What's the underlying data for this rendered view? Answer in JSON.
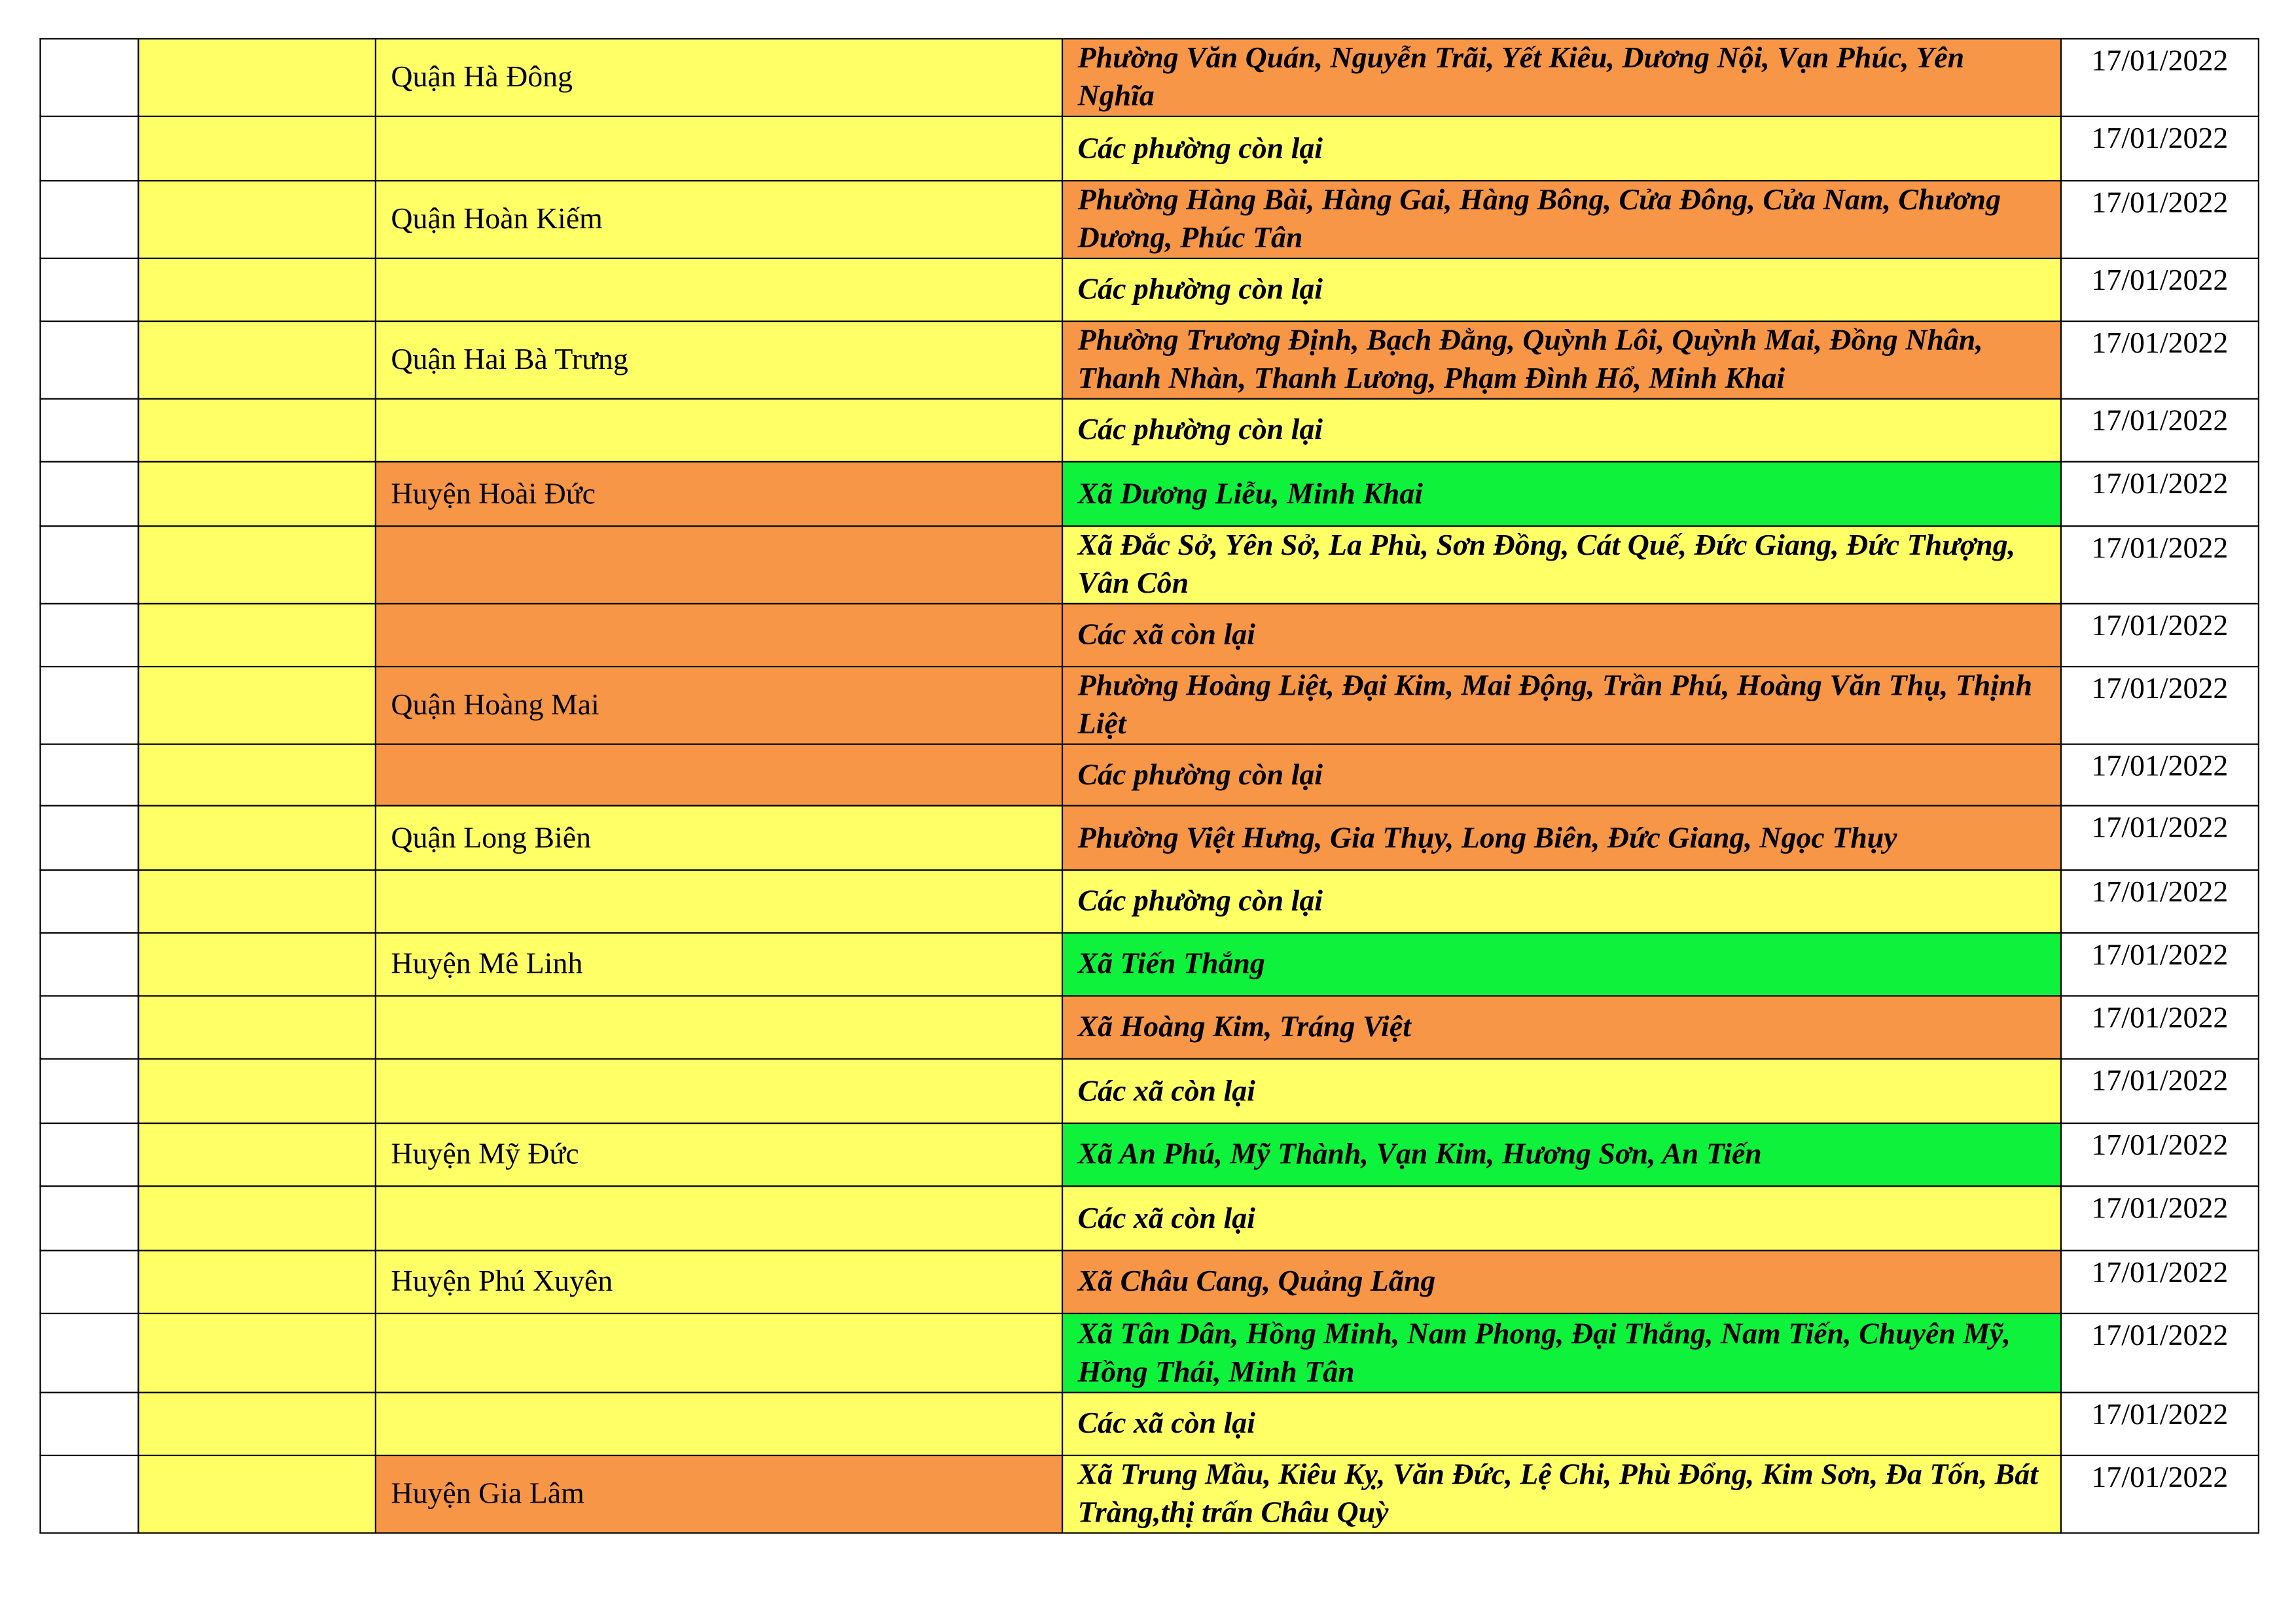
{
  "colors": {
    "yellow": "#ffff66",
    "orange": "#f79646",
    "green": "#0ff23c",
    "white": "#ffffff"
  },
  "rows": [
    {
      "district": "Quận Hà Đông",
      "district_color": "yellow",
      "wards": "Phường Văn Quán, Nguyễn Trãi, Yết Kiêu, Dương Nội, Vạn Phúc, Yên Nghĩa",
      "ward_color": "orange",
      "date": "17/01/2022"
    },
    {
      "district": "",
      "district_color": "yellow",
      "wards": "Các phường còn lại",
      "ward_color": "yellow",
      "date": "17/01/2022"
    },
    {
      "district": "Quận Hoàn Kiếm",
      "district_color": "yellow",
      "wards": "Phường Hàng Bài, Hàng Gai, Hàng Bông, Cửa Đông, Cửa Nam, Chương Dương, Phúc Tân",
      "ward_color": "orange",
      "date": "17/01/2022"
    },
    {
      "district": "",
      "district_color": "yellow",
      "wards": "Các phường còn lại",
      "ward_color": "yellow",
      "date": "17/01/2022"
    },
    {
      "district": "Quận Hai Bà Trưng",
      "district_color": "yellow",
      "wards": "Phường Trương Định, Bạch Đằng, Quỳnh Lôi, Quỳnh Mai, Đồng Nhân, Thanh Nhàn, Thanh Lương, Phạm Đình Hổ, Minh Khai",
      "ward_color": "orange",
      "date": "17/01/2022"
    },
    {
      "district": "",
      "district_color": "yellow",
      "wards": "Các phường còn lại",
      "ward_color": "yellow",
      "date": "17/01/2022"
    },
    {
      "district": "Huyện Hoài Đức",
      "district_color": "orange",
      "wards": "Xã Dương Liễu, Minh Khai",
      "ward_color": "green",
      "date": "17/01/2022"
    },
    {
      "district": "",
      "district_color": "orange",
      "wards": "Xã Đắc Sở, Yên Sở, La Phù, Sơn Đồng, Cát Quế, Đức Giang, Đức Thượng, Vân Côn",
      "ward_color": "yellow",
      "date": "17/01/2022"
    },
    {
      "district": "",
      "district_color": "orange",
      "wards": "Các xã còn lại",
      "ward_color": "orange",
      "date": "17/01/2022"
    },
    {
      "district": "Quận Hoàng Mai",
      "district_color": "orange",
      "wards": "Phường Hoàng Liệt, Đại Kim, Mai Động, Trần Phú, Hoàng Văn Thụ, Thịnh Liệt",
      "ward_color": "orange",
      "date": "17/01/2022"
    },
    {
      "district": "",
      "district_color": "orange",
      "wards": "Các phường còn lại",
      "ward_color": "orange",
      "date": "17/01/2022"
    },
    {
      "district": "Quận Long Biên",
      "district_color": "yellow",
      "wards": "Phường Việt Hưng, Gia Thụy, Long Biên, Đức Giang, Ngọc Thụy",
      "ward_color": "orange",
      "date": "17/01/2022"
    },
    {
      "district": "",
      "district_color": "yellow",
      "wards": "Các phường còn lại",
      "ward_color": "yellow",
      "date": "17/01/2022"
    },
    {
      "district": "Huyện Mê Linh",
      "district_color": "yellow",
      "wards": "Xã Tiến Thắng",
      "ward_color": "green",
      "date": "17/01/2022"
    },
    {
      "district": "",
      "district_color": "yellow",
      "wards": "Xã Hoàng Kim, Tráng Việt",
      "ward_color": "orange",
      "date": "17/01/2022"
    },
    {
      "district": "",
      "district_color": "yellow",
      "wards": "Các xã còn lại",
      "ward_color": "yellow",
      "date": "17/01/2022"
    },
    {
      "district": "Huyện Mỹ Đức",
      "district_color": "yellow",
      "wards": "Xã An Phú, Mỹ Thành, Vạn Kim, Hương Sơn, An Tiến",
      "ward_color": "green",
      "date": "17/01/2022"
    },
    {
      "district": "",
      "district_color": "yellow",
      "wards": "Các xã còn lại",
      "ward_color": "yellow",
      "date": "17/01/2022"
    },
    {
      "district": "Huyện Phú Xuyên",
      "district_color": "yellow",
      "wards": "Xã Châu Cang, Quảng Lãng",
      "ward_color": "orange",
      "date": "17/01/2022"
    },
    {
      "district": "",
      "district_color": "yellow",
      "wards": "Xã Tân Dân, Hồng Minh, Nam Phong, Đại Thắng, Nam Tiến, Chuyên Mỹ, Hồng Thái, Minh Tân",
      "ward_color": "green",
      "date": "17/01/2022"
    },
    {
      "district": "",
      "district_color": "yellow",
      "wards": "Các xã còn lại",
      "ward_color": "yellow",
      "date": "17/01/2022"
    },
    {
      "district": "Huyện Gia Lâm",
      "district_color": "orange",
      "wards": "Xã Trung Mầu, Kiêu Kỵ, Văn Đức, Lệ Chi, Phù Đổng, Kim Sơn, Đa Tốn, Bát Tràng,thị trấn Châu Quỳ",
      "ward_color": "yellow",
      "date": "17/01/2022"
    }
  ]
}
